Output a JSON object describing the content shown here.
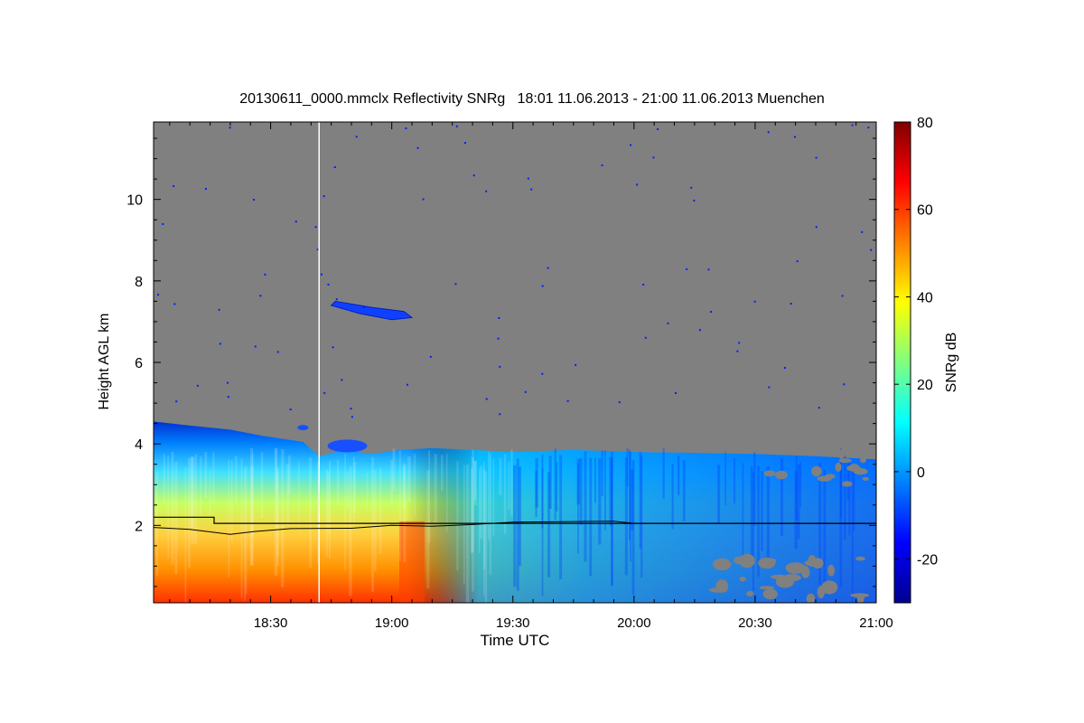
{
  "chart_data": {
    "type": "heatmap",
    "title": "20130611_0000.mmclx Reflectivity SNRg   18:01 11.06.2013 - 21:00 11.06.2013 Muenchen",
    "xlabel": "Time UTC",
    "ylabel": "Height AGL km",
    "xlim": [
      "18:01",
      "21:00"
    ],
    "ylim": [
      0.1,
      11.9
    ],
    "x_ticks": [
      "18:30",
      "19:00",
      "19:30",
      "20:00",
      "20:30",
      "21:00"
    ],
    "y_ticks": [
      2,
      4,
      6,
      8,
      10
    ],
    "grid": false,
    "colorbar": {
      "label": "SNRg dB",
      "range": [
        -30,
        80
      ],
      "ticks": [
        -20,
        0,
        20,
        40,
        60,
        80
      ],
      "colors": [
        "#00008f",
        "#0000ff",
        "#0080ff",
        "#00ffff",
        "#80ff80",
        "#ffff00",
        "#ff8000",
        "#ff0000",
        "#800000"
      ],
      "placement": "right"
    },
    "no_signal_color": "#808080",
    "bright_band_line": {
      "description_values": [
        {
          "time": "18:01",
          "height": 2.2
        },
        {
          "time": "18:16",
          "height": 2.2
        },
        {
          "time": "18:16",
          "height": 2.05
        },
        {
          "time": "21:00",
          "height": 2.05
        }
      ]
    },
    "cloud_top_line": [
      {
        "time": "18:01",
        "height": 4.55
      },
      {
        "time": "18:10",
        "height": 4.45
      },
      {
        "time": "18:20",
        "height": 4.35
      },
      {
        "time": "18:28",
        "height": 4.2
      },
      {
        "time": "18:38",
        "height": 4.05
      },
      {
        "time": "18:42",
        "height": 3.7
      },
      {
        "time": "18:48",
        "height": 3.85
      },
      {
        "time": "18:55",
        "height": 3.75
      },
      {
        "time": "19:02",
        "height": 3.85
      },
      {
        "time": "19:10",
        "height": 3.9
      },
      {
        "time": "19:20",
        "height": 3.85
      },
      {
        "time": "19:30",
        "height": 3.8
      },
      {
        "time": "19:45",
        "height": 3.85
      },
      {
        "time": "20:00",
        "height": 3.8
      },
      {
        "time": "20:15",
        "height": 3.78
      },
      {
        "time": "20:30",
        "height": 3.75
      },
      {
        "time": "20:45",
        "height": 3.7
      },
      {
        "time": "21:00",
        "height": 3.62
      }
    ],
    "missing_data_time": "18:42"
  }
}
